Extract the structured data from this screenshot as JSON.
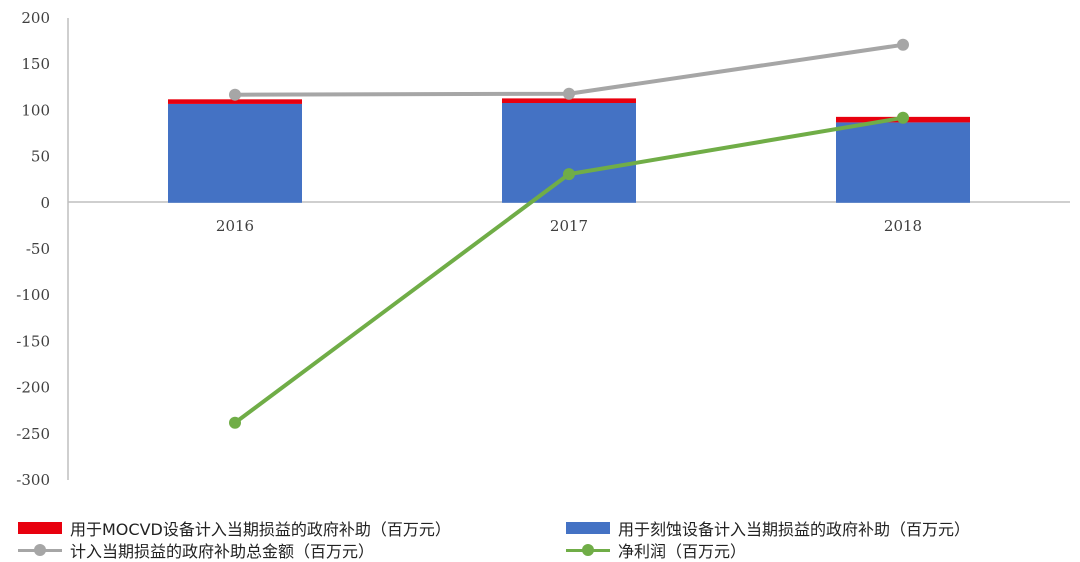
{
  "chart_data": {
    "type": "bar",
    "categories": [
      "2016",
      "2017",
      "2018"
    ],
    "ylim": [
      -300,
      200
    ],
    "yticks": [
      200,
      150,
      100,
      50,
      0,
      -50,
      -100,
      -150,
      -200,
      -250,
      -300
    ],
    "grid": false,
    "legend_position": "bottom",
    "series": [
      {
        "name": "用于刻蚀设备计入当期损益的政府补助（百万元）",
        "kind": "bar-stack",
        "color": "#4472C4",
        "values": [
          107,
          108,
          87
        ]
      },
      {
        "name": "用于MOCVD设备计入当期损益的政府补助（百万元）",
        "kind": "bar-stack",
        "color": "#E8000E",
        "values": [
          5,
          5,
          6
        ]
      },
      {
        "name": "计入当期损益的政府补助总金额（百万元）",
        "kind": "line",
        "color": "#A6A6A6",
        "values": [
          117,
          118,
          171
        ]
      },
      {
        "name": "净利润（百万元）",
        "kind": "line",
        "color": "#70AD47",
        "values": [
          -238,
          31,
          92
        ]
      }
    ]
  },
  "legend": {
    "mocvd": "用于MOCVD设备计入当期损益的政府补助（百万元）",
    "etch": "用于刻蚀设备计入当期损益的政府补助（百万元）",
    "total": "计入当期损益的政府补助总金额（百万元）",
    "net": "净利润（百万元）"
  }
}
